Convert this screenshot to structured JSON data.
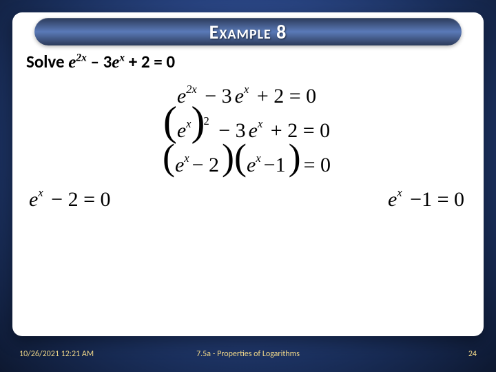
{
  "slide": {
    "title": "Example 8",
    "problem_prefix": "Solve ",
    "steps": {
      "s1_a": "e",
      "s1_a_sup": "2x",
      "s1_b": "− 3",
      "s1_c": "e",
      "s1_c_sup": "x",
      "s1_d": "+ 2 = 0",
      "s2_a": "e",
      "s2_a_sup": "x",
      "s2_outsup": "2",
      "s2_b": "− 3",
      "s2_c": "e",
      "s2_c_sup": "x",
      "s2_d": "+ 2 = 0",
      "s3_a": "e",
      "s3_a_sup": "x",
      "s3_b": "− 2",
      "s3_c": "e",
      "s3_c_sup": "x",
      "s3_d": "−1",
      "s3_e": "= 0",
      "s4l_a": "e",
      "s4l_a_sup": "x",
      "s4l_b": "− 2 = 0",
      "s4r_a": "e",
      "s4r_a_sup": "x",
      "s4r_b": "−1 = 0"
    }
  },
  "footer": {
    "timestamp": "10/26/2021 12:21 AM",
    "section": "7.5a - Properties of Logarithms",
    "page": "24"
  },
  "style": {
    "bg_gradient_center": "#4a6cb8",
    "bg_gradient_edge": "#0d1830",
    "card_bg": "#ffffff",
    "title_bar_gradient": [
      "#2a3a5a",
      "#5a7ab8"
    ],
    "title_color": "#ffffff",
    "text_color": "#000000",
    "footer_color": "#f2d98a",
    "title_fontsize": 28,
    "problem_fontsize": 25,
    "equation_fontsize": 30
  }
}
